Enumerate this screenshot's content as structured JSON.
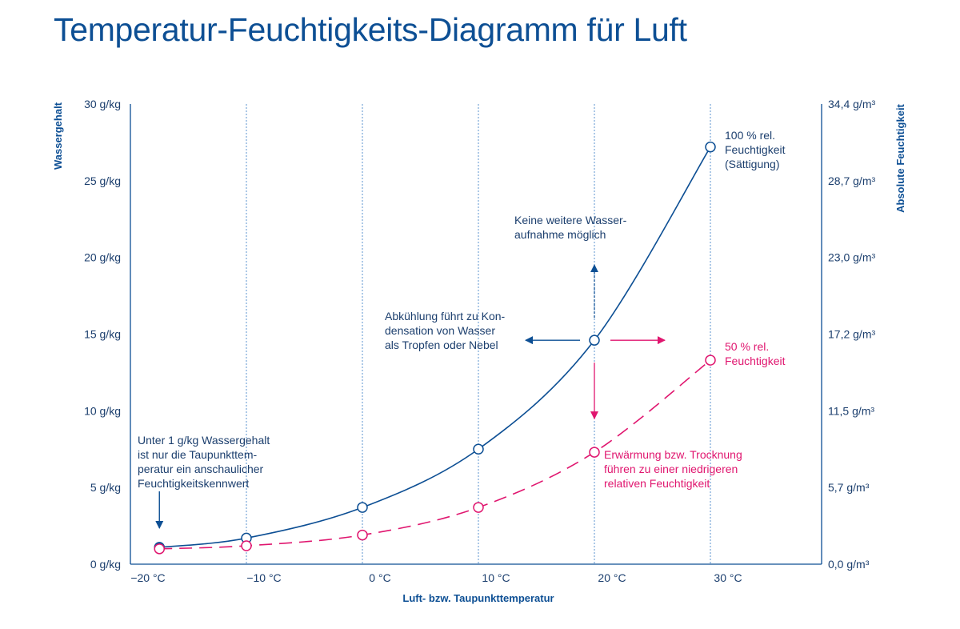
{
  "title": "Temperatur-Feuchtigkeits-Diagramm für Luft",
  "colors": {
    "blue": "#0d4f94",
    "pink": "#e0166f",
    "grid": "#5b93cf",
    "text": "#1c3f6e"
  },
  "chart_data": {
    "type": "line",
    "xlabel": "Luft- bzw. Taupunkttemperatur",
    "ylabel": "Wassergehalt",
    "ylabel_right": "Absolute Feuchtigkeit",
    "xlim": [
      -20,
      40
    ],
    "ylim": [
      0,
      30
    ],
    "x_ticks": [
      -20,
      -10,
      0,
      10,
      20,
      30
    ],
    "x_tick_labels": [
      "−20 °C",
      "−10 °C",
      "0 °C",
      "10 °C",
      "20 °C",
      "30 °C"
    ],
    "y_ticks": [
      0,
      5,
      10,
      15,
      20,
      25,
      30
    ],
    "y_tick_labels": [
      "0 g/kg",
      "5 g/kg",
      "10 g/kg",
      "15 g/kg",
      "20 g/kg",
      "25 g/kg",
      "30 g/kg"
    ],
    "y_right_tick_labels": [
      "0,0 g/m³",
      "5,7 g/m³",
      "11,5 g/m³",
      "17,2 g/m³",
      "23,0 g/m³",
      "28,7 g/m³",
      "34,4 g/m³"
    ],
    "vertical_gridlines_at": [
      -10,
      0,
      10,
      20,
      30
    ],
    "series": [
      {
        "name": "100 % rel. Feuchtigkeit (Sättigung)",
        "style": "solid",
        "color": "#0d4f94",
        "points": [
          {
            "x": -17.5,
            "y": 1.1,
            "filled": true
          },
          {
            "x": -10,
            "y": 1.7
          },
          {
            "x": 0,
            "y": 3.7
          },
          {
            "x": 10,
            "y": 7.5
          },
          {
            "x": 20,
            "y": 14.6
          },
          {
            "x": 30,
            "y": 27.2
          }
        ]
      },
      {
        "name": "50 % rel. Feuchtigkeit",
        "style": "dashed",
        "color": "#e0166f",
        "points": [
          {
            "x": -17.5,
            "y": 1.0
          },
          {
            "x": -10,
            "y": 1.2
          },
          {
            "x": 0,
            "y": 1.9
          },
          {
            "x": 10,
            "y": 3.7
          },
          {
            "x": 20,
            "y": 7.3
          },
          {
            "x": 30,
            "y": 13.3
          }
        ]
      }
    ],
    "annotations": [
      {
        "id": "sat",
        "color": "blue",
        "lines": [
          "100 % rel.",
          "Feuchtigkeit",
          "(Sättigung)"
        ]
      },
      {
        "id": "fifty",
        "color": "pink",
        "lines": [
          "50 % rel.",
          "Feuchtigkeit"
        ]
      },
      {
        "id": "keine",
        "color": "blue",
        "lines": [
          "Keine weitere Wasser-",
          "aufnahme möglich"
        ]
      },
      {
        "id": "abk",
        "color": "blue",
        "lines": [
          "Abkühlung führt zu Kon-",
          "densation von Wasser",
          "als Tropfen oder Nebel"
        ]
      },
      {
        "id": "erw",
        "color": "pink",
        "lines": [
          "Erwärmung bzw. Trocknung",
          "führen zu einer niedrigeren",
          "relativen Feuchtigkeit"
        ]
      },
      {
        "id": "unter",
        "color": "blue",
        "lines": [
          "Unter 1 g/kg Wassergehalt",
          "ist nur die Taupunkttem-",
          "peratur ein anschaulicher",
          "Feuchtigkeitskennwert"
        ]
      }
    ]
  }
}
